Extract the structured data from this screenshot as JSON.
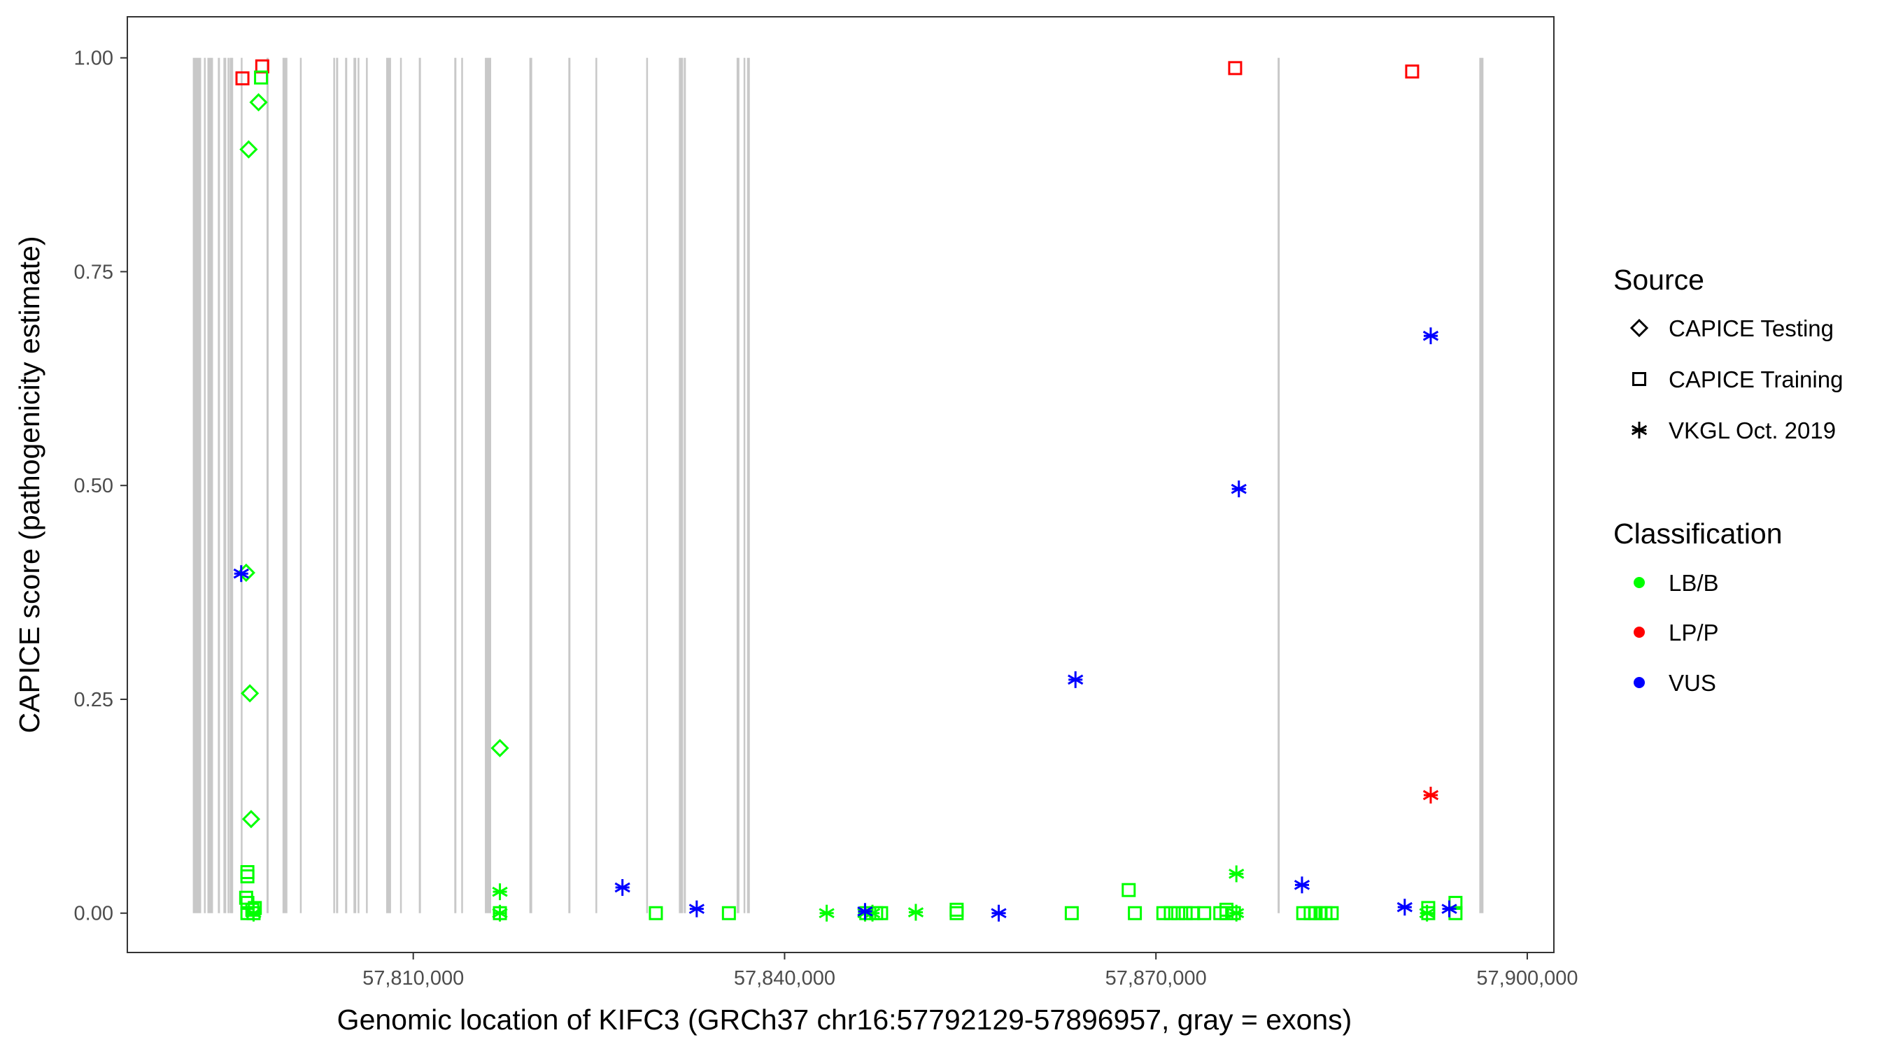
{
  "chart_data": {
    "type": "scatter",
    "xlabel": "Genomic location of KIFC3 (GRCh37 chr16:57792129-57896957, gray = exons)",
    "ylabel": "CAPICE score (pathogenicity estimate)",
    "xlim": [
      57786900,
      57902150
    ],
    "ylim": [
      -0.046,
      1.048
    ],
    "xticks": [
      57810000,
      57840000,
      57870000,
      57900000
    ],
    "xtick_labels": [
      "57,810,000",
      "57,840,000",
      "57,870,000",
      "57,900,000"
    ],
    "yticks": [
      0,
      0.25,
      0.5,
      0.75,
      1.0
    ],
    "ytick_labels": [
      "0.00",
      "0.25",
      "0.50",
      "0.75",
      "1.00"
    ],
    "grid": false,
    "legend_position": "right",
    "legend": {
      "source_title": "Source",
      "sources": [
        {
          "key": "testing",
          "label": "CAPICE Testing",
          "shape": "diamond"
        },
        {
          "key": "training",
          "label": "CAPICE Training",
          "shape": "square"
        },
        {
          "key": "vkgl",
          "label": "VKGL Oct. 2019",
          "shape": "asterisk"
        }
      ],
      "class_title": "Classification",
      "classes": [
        {
          "key": "LB/B",
          "label": "LB/B",
          "color": "#00ff00"
        },
        {
          "key": "LP/P",
          "label": "LP/P",
          "color": "#ff0000"
        },
        {
          "key": "VUS",
          "label": "VUS",
          "color": "#0000ff"
        }
      ]
    },
    "exon_color": "#c8c8c8",
    "exons": [
      [
        57792191,
        57792865
      ],
      [
        57793090,
        57793140
      ],
      [
        57793371,
        57793820
      ],
      [
        57794213,
        57794382
      ],
      [
        57794663,
        57794888
      ],
      [
        57795000,
        57795112
      ],
      [
        57795168,
        57795210
      ],
      [
        57795281,
        57795449
      ],
      [
        57796067,
        57796120
      ],
      [
        57798146,
        57798315
      ],
      [
        57799438,
        57799831
      ],
      [
        57800843,
        57800900
      ],
      [
        57803539,
        57803652
      ],
      [
        57803764,
        57803933
      ],
      [
        57804494,
        57804663
      ],
      [
        57805169,
        57805393
      ],
      [
        57805506,
        57805618
      ],
      [
        57806180,
        57806230
      ],
      [
        57807809,
        57808202
      ],
      [
        57808933,
        57809045
      ],
      [
        57810449,
        57810618
      ],
      [
        57813315,
        57813483
      ],
      [
        57813876,
        57813930
      ],
      [
        57815787,
        57816292
      ],
      [
        57819382,
        57819607
      ],
      [
        57822528,
        57822697
      ],
      [
        57824719,
        57824780
      ],
      [
        57828820,
        57828880
      ],
      [
        57831461,
        57831798
      ],
      [
        57831854,
        57832023
      ],
      [
        57836124,
        57836348
      ],
      [
        57836686,
        57836798
      ],
      [
        57836966,
        57837191
      ],
      [
        57879832,
        57880000
      ],
      [
        57896124,
        57896461
      ]
    ],
    "points": [
      {
        "x": 57797500,
        "y": 0.948,
        "source": "testing",
        "class": "LB/B"
      },
      {
        "x": 57796700,
        "y": 0.893,
        "source": "testing",
        "class": "LB/B"
      },
      {
        "x": 57796500,
        "y": 0.398,
        "source": "testing",
        "class": "LB/B"
      },
      {
        "x": 57796800,
        "y": 0.257,
        "source": "testing",
        "class": "LB/B"
      },
      {
        "x": 57817000,
        "y": 0.193,
        "source": "testing",
        "class": "LB/B"
      },
      {
        "x": 57796900,
        "y": 0.11,
        "source": "testing",
        "class": "LB/B"
      },
      {
        "x": 57796200,
        "y": 0.976,
        "source": "training",
        "class": "LP/P"
      },
      {
        "x": 57797800,
        "y": 0.99,
        "source": "training",
        "class": "LP/P"
      },
      {
        "x": 57797700,
        "y": 0.977,
        "source": "training",
        "class": "LB/B"
      },
      {
        "x": 57876400,
        "y": 0.988,
        "source": "training",
        "class": "LP/P"
      },
      {
        "x": 57890700,
        "y": 0.984,
        "source": "training",
        "class": "LP/P"
      },
      {
        "x": 57796600,
        "y": 0.048,
        "source": "training",
        "class": "LB/B"
      },
      {
        "x": 57796600,
        "y": 0.043,
        "source": "training",
        "class": "LB/B"
      },
      {
        "x": 57796500,
        "y": 0.018,
        "source": "training",
        "class": "LB/B"
      },
      {
        "x": 57796600,
        "y": 0.012,
        "source": "training",
        "class": "LB/B"
      },
      {
        "x": 57796600,
        "y": 0.0,
        "source": "training",
        "class": "LB/B"
      },
      {
        "x": 57797000,
        "y": 0.004,
        "source": "training",
        "class": "LB/B"
      },
      {
        "x": 57797200,
        "y": 0.006,
        "source": "training",
        "class": "LB/B"
      },
      {
        "x": 57797100,
        "y": 0.0,
        "source": "training",
        "class": "LB/B"
      },
      {
        "x": 57817000,
        "y": 0.0,
        "source": "training",
        "class": "LB/B"
      },
      {
        "x": 57829600,
        "y": 0.0,
        "source": "training",
        "class": "LB/B"
      },
      {
        "x": 57835500,
        "y": 0.0,
        "source": "training",
        "class": "LB/B"
      },
      {
        "x": 57846600,
        "y": 0.0,
        "source": "training",
        "class": "LB/B"
      },
      {
        "x": 57847400,
        "y": 0.0,
        "source": "training",
        "class": "LB/B"
      },
      {
        "x": 57847800,
        "y": 0.0,
        "source": "training",
        "class": "LB/B"
      },
      {
        "x": 57853900,
        "y": 0.004,
        "source": "training",
        "class": "LB/B"
      },
      {
        "x": 57853900,
        "y": 0.0,
        "source": "training",
        "class": "LB/B"
      },
      {
        "x": 57863200,
        "y": 0.0,
        "source": "training",
        "class": "LB/B"
      },
      {
        "x": 57867800,
        "y": 0.027,
        "source": "training",
        "class": "LB/B"
      },
      {
        "x": 57868300,
        "y": 0.0,
        "source": "training",
        "class": "LB/B"
      },
      {
        "x": 57870600,
        "y": 0.0,
        "source": "training",
        "class": "LB/B"
      },
      {
        "x": 57871200,
        "y": 0.0,
        "source": "training",
        "class": "LB/B"
      },
      {
        "x": 57871800,
        "y": 0.0,
        "source": "training",
        "class": "LB/B"
      },
      {
        "x": 57872400,
        "y": 0.0,
        "source": "training",
        "class": "LB/B"
      },
      {
        "x": 57873000,
        "y": 0.0,
        "source": "training",
        "class": "LB/B"
      },
      {
        "x": 57873900,
        "y": 0.0,
        "source": "training",
        "class": "LB/B"
      },
      {
        "x": 57875200,
        "y": 0.0,
        "source": "training",
        "class": "LB/B"
      },
      {
        "x": 57875700,
        "y": 0.004,
        "source": "training",
        "class": "LB/B"
      },
      {
        "x": 57875700,
        "y": 0.0,
        "source": "training",
        "class": "LB/B"
      },
      {
        "x": 57876300,
        "y": 0.0,
        "source": "training",
        "class": "LB/B"
      },
      {
        "x": 57881900,
        "y": 0.0,
        "source": "training",
        "class": "LB/B"
      },
      {
        "x": 57882500,
        "y": 0.0,
        "source": "training",
        "class": "LB/B"
      },
      {
        "x": 57882900,
        "y": 0.0,
        "source": "training",
        "class": "LB/B"
      },
      {
        "x": 57883300,
        "y": 0.0,
        "source": "training",
        "class": "LB/B"
      },
      {
        "x": 57883700,
        "y": 0.0,
        "source": "training",
        "class": "LB/B"
      },
      {
        "x": 57884200,
        "y": 0.0,
        "source": "training",
        "class": "LB/B"
      },
      {
        "x": 57892000,
        "y": 0.006,
        "source": "training",
        "class": "LB/B"
      },
      {
        "x": 57892000,
        "y": 0.0,
        "source": "training",
        "class": "LB/B"
      },
      {
        "x": 57894200,
        "y": 0.012,
        "source": "training",
        "class": "LB/B"
      },
      {
        "x": 57894200,
        "y": 0.0,
        "source": "training",
        "class": "LB/B"
      },
      {
        "x": 57796100,
        "y": 0.397,
        "source": "vkgl",
        "class": "VUS"
      },
      {
        "x": 57817000,
        "y": 0.025,
        "source": "vkgl",
        "class": "LB/B"
      },
      {
        "x": 57817000,
        "y": 0.0,
        "source": "vkgl",
        "class": "LB/B"
      },
      {
        "x": 57797100,
        "y": 0.0,
        "source": "vkgl",
        "class": "LB/B"
      },
      {
        "x": 57826900,
        "y": 0.03,
        "source": "vkgl",
        "class": "VUS"
      },
      {
        "x": 57832900,
        "y": 0.005,
        "source": "vkgl",
        "class": "VUS"
      },
      {
        "x": 57843400,
        "y": 0.0,
        "source": "vkgl",
        "class": "LB/B"
      },
      {
        "x": 57846500,
        "y": 0.0,
        "source": "vkgl",
        "class": "LB/B"
      },
      {
        "x": 57847100,
        "y": 0.0,
        "source": "vkgl",
        "class": "LB/B"
      },
      {
        "x": 57846500,
        "y": 0.002,
        "source": "vkgl",
        "class": "VUS"
      },
      {
        "x": 57850600,
        "y": 0.001,
        "source": "vkgl",
        "class": "LB/B"
      },
      {
        "x": 57857300,
        "y": 0.0,
        "source": "vkgl",
        "class": "VUS"
      },
      {
        "x": 57863500,
        "y": 0.273,
        "source": "vkgl",
        "class": "VUS"
      },
      {
        "x": 57876700,
        "y": 0.496,
        "source": "vkgl",
        "class": "VUS"
      },
      {
        "x": 57876500,
        "y": 0.046,
        "source": "vkgl",
        "class": "LB/B"
      },
      {
        "x": 57876500,
        "y": 0.0,
        "source": "vkgl",
        "class": "LB/B"
      },
      {
        "x": 57881800,
        "y": 0.033,
        "source": "vkgl",
        "class": "VUS"
      },
      {
        "x": 57890100,
        "y": 0.007,
        "source": "vkgl",
        "class": "VUS"
      },
      {
        "x": 57892200,
        "y": 0.675,
        "source": "vkgl",
        "class": "VUS"
      },
      {
        "x": 57892200,
        "y": 0.138,
        "source": "vkgl",
        "class": "LP/P"
      },
      {
        "x": 57891900,
        "y": 0.0,
        "source": "vkgl",
        "class": "LB/B"
      },
      {
        "x": 57893700,
        "y": 0.005,
        "source": "vkgl",
        "class": "VUS"
      }
    ]
  }
}
